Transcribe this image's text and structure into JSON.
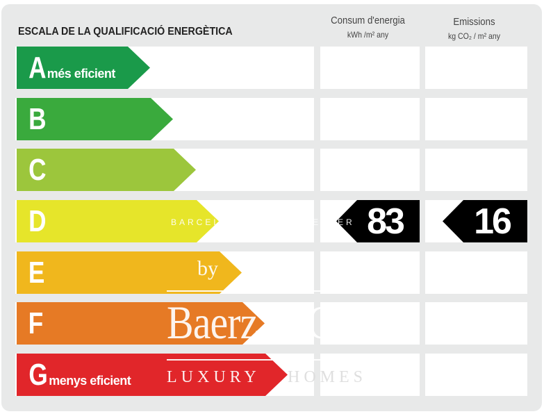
{
  "title": "ESCALA DE LA QUALIFICACIÓ ENERGÈTICA",
  "columns": {
    "energy": {
      "label": "Consum d'energia",
      "unit": "kWh /m² any"
    },
    "emissions": {
      "label": "Emissions",
      "unit": "kg CO₂ / m² any"
    }
  },
  "classes": [
    {
      "letter": "A",
      "note": "més eficient",
      "color": "#1a9a4a"
    },
    {
      "letter": "B",
      "note": "",
      "color": "#3aaa3d"
    },
    {
      "letter": "C",
      "note": "",
      "color": "#9cc63c"
    },
    {
      "letter": "D",
      "note": "",
      "color": "#e6e52a"
    },
    {
      "letter": "E",
      "note": "",
      "color": "#f0b71d"
    },
    {
      "letter": "F",
      "note": "",
      "color": "#e67a25"
    },
    {
      "letter": "G",
      "note": "menys eficient",
      "color": "#e1262a"
    }
  ],
  "rating": {
    "class": "D",
    "energy": "83",
    "emissions": "16"
  },
  "watermark": {
    "line1": "BARCEL",
    "line1b": "EXPER",
    "by": "by",
    "brand": "Baerz & Co",
    "tag1": "LUXURY",
    "tag2": "HOMES"
  }
}
